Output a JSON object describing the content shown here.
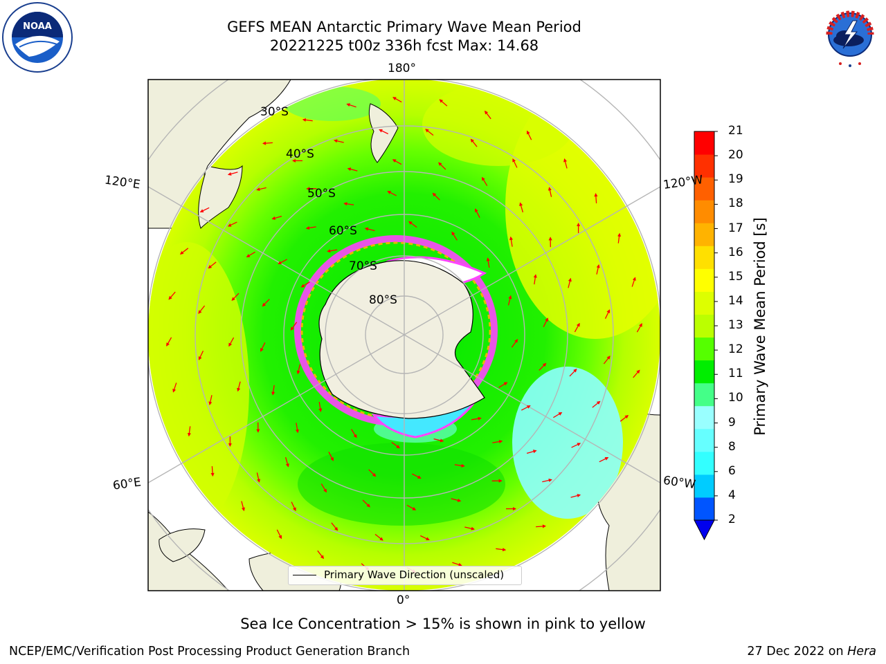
{
  "title": {
    "line1": "GEFS MEAN Antarctic Primary Wave Mean Period",
    "line2": "20221225 t00z 336h fcst   Max: 14.68"
  },
  "logos": {
    "noaa": {
      "text": "NOAA",
      "ring_text": "NATIONAL OCEANIC AND ATMOSPHERIC ADMINISTRATION · U.S. DEPARTMENT OF COMMERCE"
    },
    "nws": {
      "ring_text": "NATIONAL WEATHER SERVICE"
    }
  },
  "map": {
    "projection": "south-polar stereographic",
    "latitude_labels": [
      "30°S",
      "40°S",
      "50°S",
      "60°S",
      "70°S",
      "80°S"
    ],
    "longitude_labels": {
      "top": "180°",
      "bottom": "0°",
      "left_upper": "120°E",
      "left_lower": "60°E",
      "right_upper": "120°W",
      "right_lower": "60°W"
    },
    "legend_text": "Primary Wave Direction (unscaled)",
    "colors": {
      "land": "#efefdc",
      "antarctica": "#f1efe0",
      "grid": "#b5b5b5",
      "arrow": "#ff0000",
      "sea_ice": "#ff44ff"
    }
  },
  "colorbar": {
    "title": "Primary Wave Mean Period [s]",
    "ticks": [
      "21",
      "20",
      "19",
      "18",
      "17",
      "16",
      "15",
      "14",
      "13",
      "12",
      "11",
      "10",
      "9",
      "8",
      "6",
      "4",
      "2"
    ],
    "levels": [
      2,
      4,
      6,
      8,
      9,
      10,
      11,
      12,
      13,
      14,
      15,
      16,
      17,
      18,
      19,
      20,
      21
    ],
    "colors": [
      "#0055ff",
      "#00ccff",
      "#33ffff",
      "#66ffff",
      "#99ffff",
      "#44ff88",
      "#00ee00",
      "#55ff00",
      "#bbff00",
      "#ddff00",
      "#ffff00",
      "#ffe000",
      "#ffb300",
      "#ff8c00",
      "#ff6000",
      "#ff3000",
      "#ff0000"
    ],
    "underflow_color": "#0000ee"
  },
  "footer": {
    "note": "Sea Ice Concentration > 15% is shown in pink to yellow",
    "left": "NCEP/EMC/Verification Post Processing Product Generation Branch",
    "right_prefix": "27 Dec 2022 on ",
    "right_machine": "Hera"
  }
}
